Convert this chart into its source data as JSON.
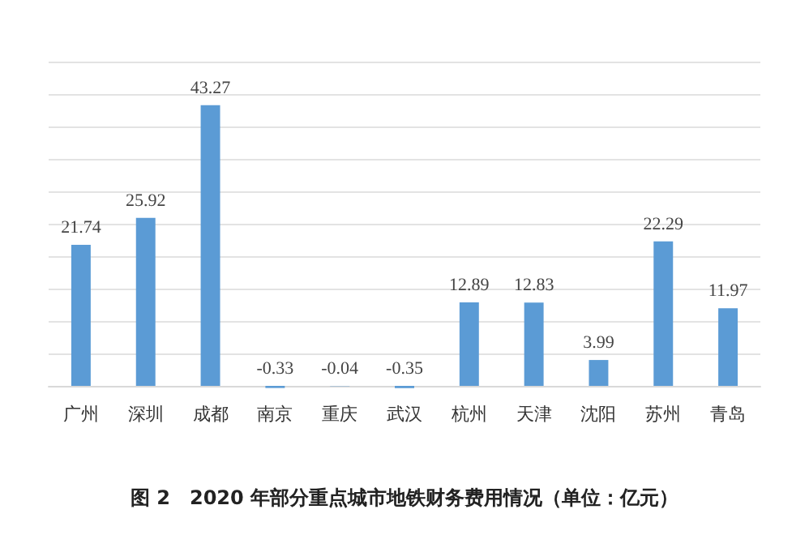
{
  "chart_data": {
    "type": "bar",
    "title": "图 2　2020 年部分重点城市地铁财务费用情况（单位：亿元）",
    "categories": [
      "广州",
      "深圳",
      "成都",
      "南京",
      "重庆",
      "武汉",
      "杭州",
      "天津",
      "沈阳",
      "苏州",
      "青岛"
    ],
    "values": [
      21.74,
      25.92,
      43.27,
      -0.33,
      -0.04,
      -0.35,
      12.89,
      12.83,
      3.99,
      22.29,
      11.97
    ],
    "color": "#5b9bd5",
    "data_labels": true,
    "grid": "y",
    "tick_labels": "x",
    "ylim": [
      -1,
      50
    ],
    "yticks": [
      {
        "value": 0,
        "label": null
      },
      {
        "value": 5,
        "label": null
      },
      {
        "value": 10,
        "label": null
      },
      {
        "value": 15,
        "label": null
      },
      {
        "value": 20,
        "label": null
      },
      {
        "value": 25,
        "label": null
      },
      {
        "value": 30,
        "label": null
      },
      {
        "value": 35,
        "label": null
      },
      {
        "value": 40,
        "label": null
      },
      {
        "value": 45,
        "label": null
      },
      {
        "value": 50,
        "label": null
      }
    ]
  }
}
